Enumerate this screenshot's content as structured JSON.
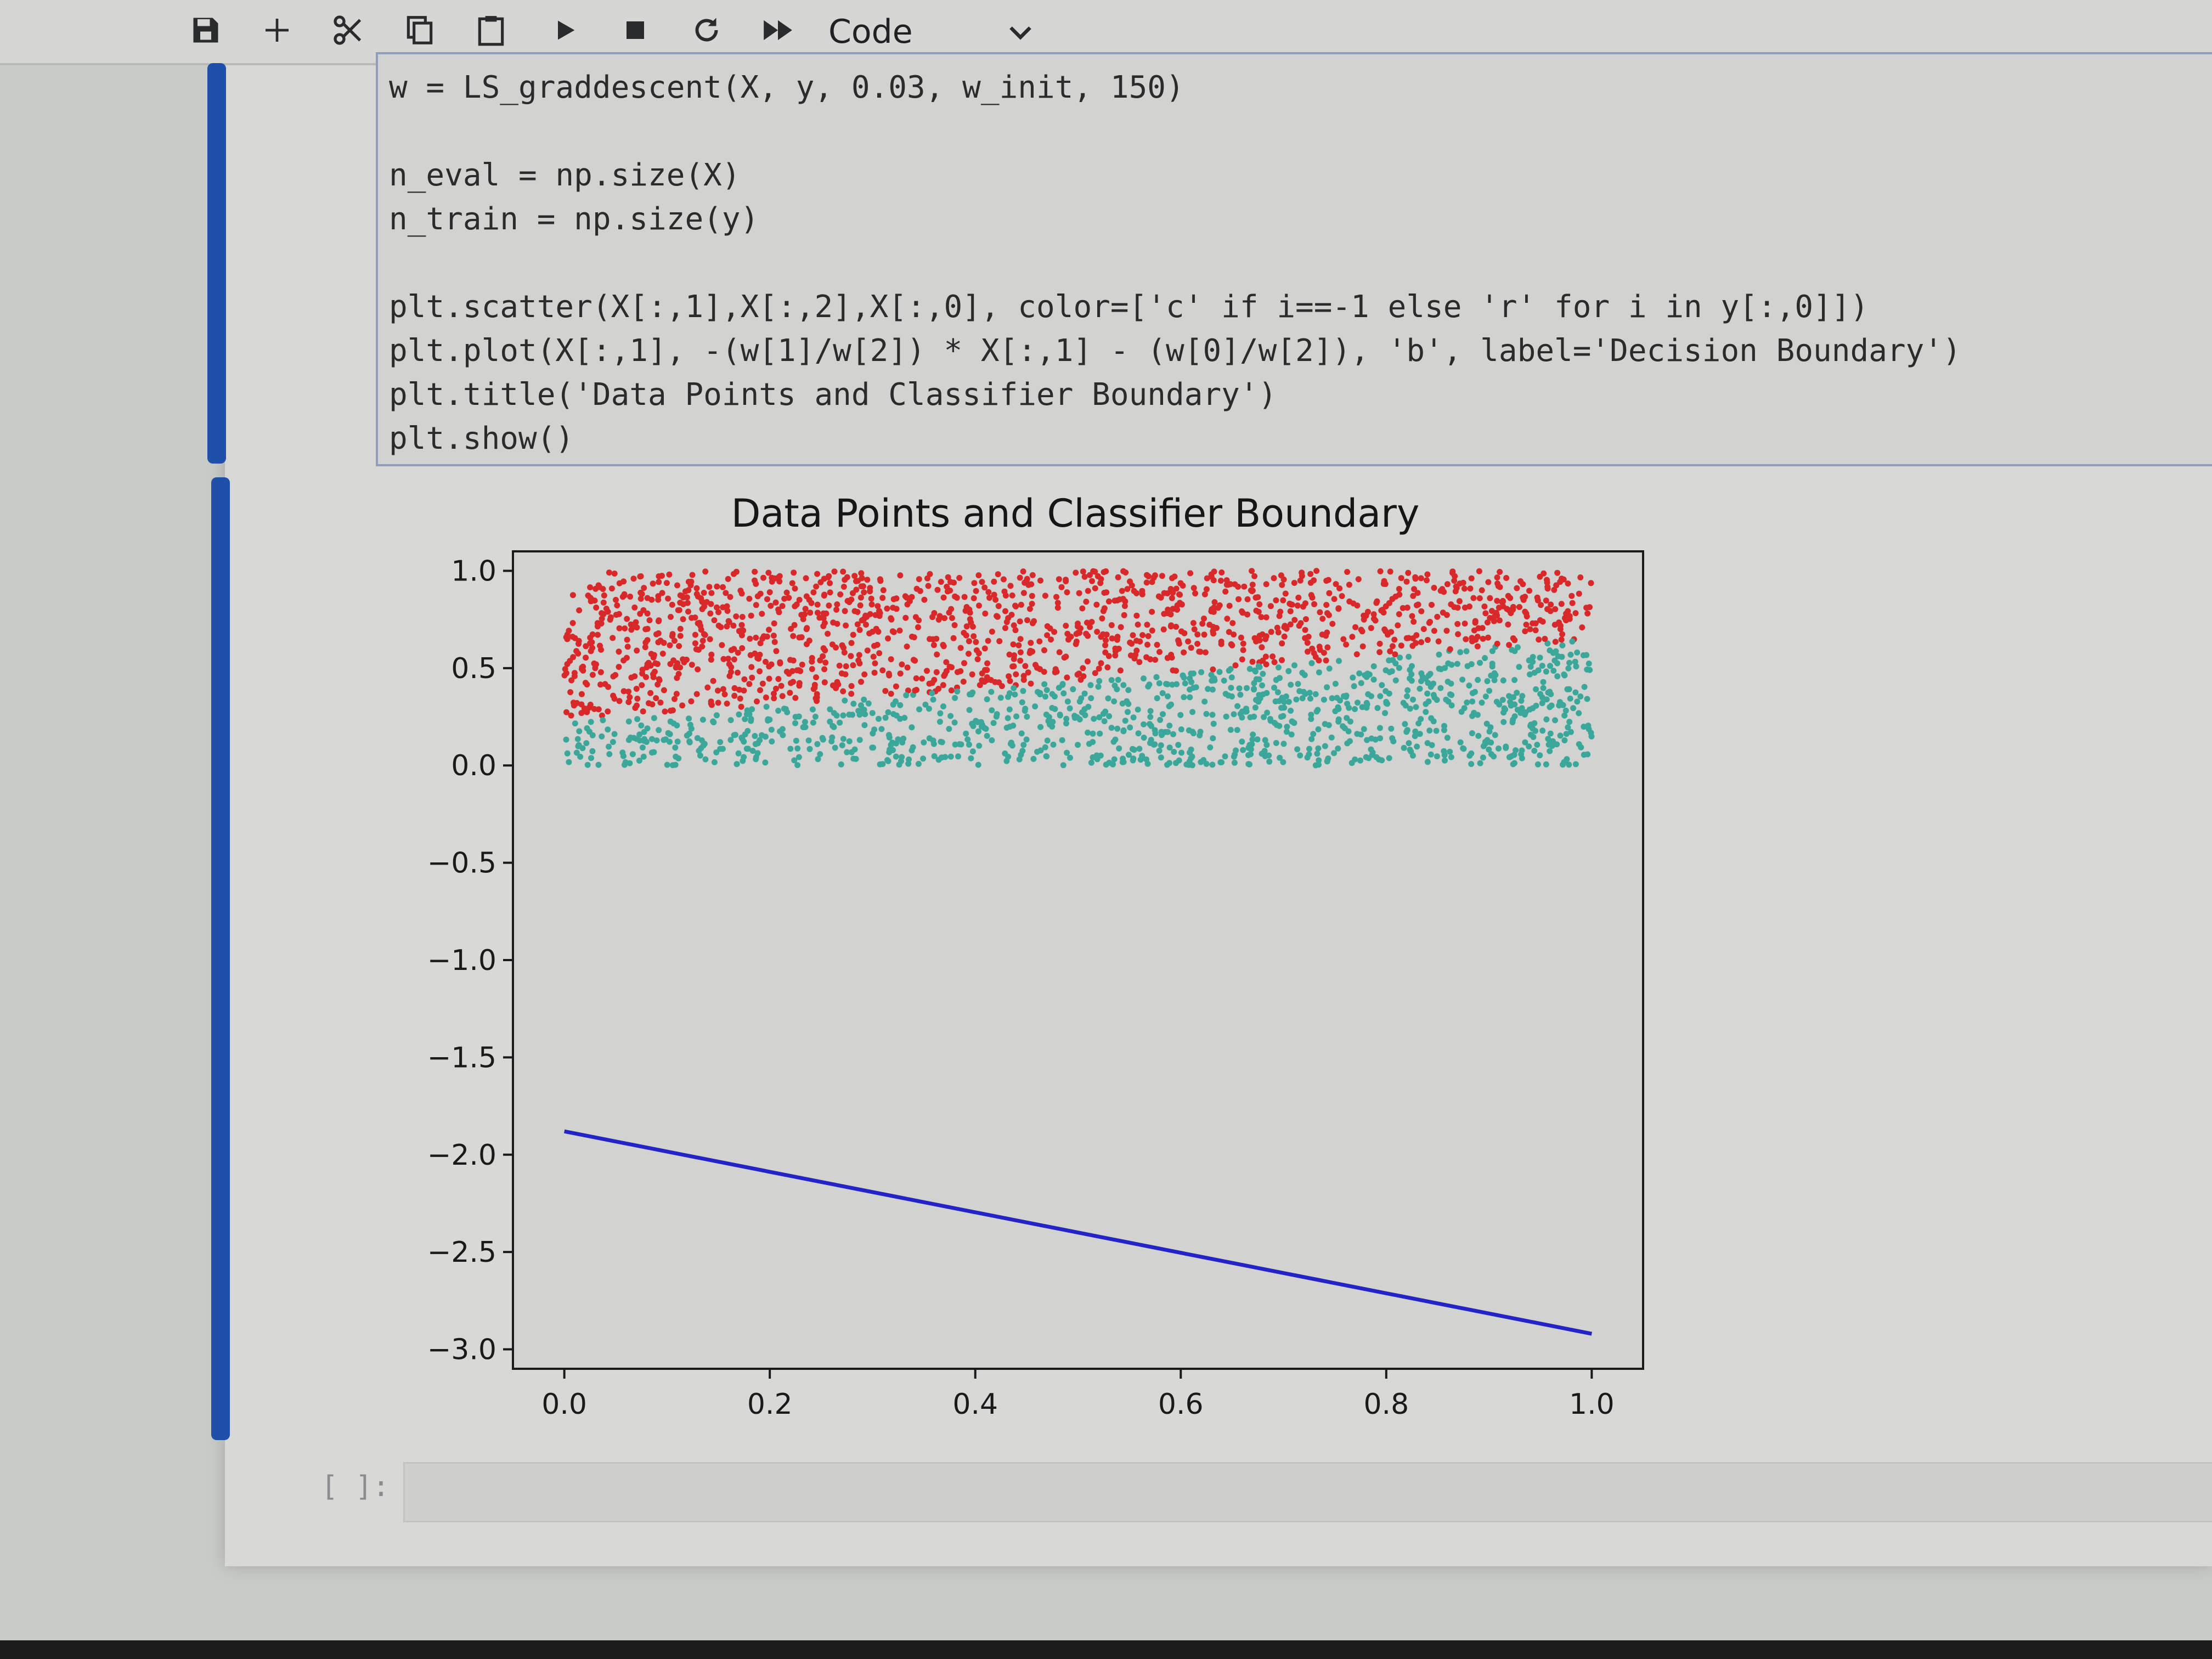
{
  "toolbar": {
    "buttons": [
      {
        "name": "save-button",
        "icon": "save-icon"
      },
      {
        "name": "insert-cell-button",
        "icon": "plus-icon"
      },
      {
        "name": "cut-button",
        "icon": "scissors-icon"
      },
      {
        "name": "copy-button",
        "icon": "copy-icon"
      },
      {
        "name": "paste-button",
        "icon": "clipboard-icon"
      },
      {
        "name": "run-button",
        "icon": "play-icon"
      },
      {
        "name": "stop-button",
        "icon": "stop-icon"
      },
      {
        "name": "restart-button",
        "icon": "restart-icon"
      },
      {
        "name": "run-all-button",
        "icon": "fast-forward-icon"
      }
    ],
    "cell_type": "Code"
  },
  "code_cell": {
    "lines": [
      "w = LS_graddescent(X, y, 0.03, w_init, 150)",
      "",
      "n_eval = np.size(X)",
      "n_train = np.size(y)",
      "",
      "plt.scatter(X[:,1],X[:,2],X[:,0], color=['c' if i==-1 else 'r' for i in y[:,0]])",
      "plt.plot(X[:,1], -(w[1]/w[2]) * X[:,1] - (w[0]/w[2]), 'b', label='Decision Boundary')",
      "plt.title('Data Points and Classifier Boundary')",
      "plt.show()"
    ]
  },
  "chart_data": {
    "type": "scatter",
    "title": "Data Points and Classifier Boundary",
    "xlabel": "",
    "ylabel": "",
    "xlim": [
      -0.05,
      1.05
    ],
    "ylim": [
      -3.1,
      1.1
    ],
    "xticks": [
      "0.0",
      "0.2",
      "0.4",
      "0.6",
      "0.8",
      "1.0"
    ],
    "xtick_values": [
      0.0,
      0.2,
      0.4,
      0.6,
      0.8,
      1.0
    ],
    "yticks": [
      "1.0",
      "0.5",
      "0.0",
      "−0.5",
      "−1.0",
      "−1.5",
      "−2.0",
      "−2.5",
      "−3.0"
    ],
    "ytick_values": [
      1.0,
      0.5,
      0.0,
      -0.5,
      -1.0,
      -1.5,
      -2.0,
      -2.5,
      -3.0
    ],
    "grid": false,
    "series": [
      {
        "color": "#d8282a",
        "kind": "points",
        "x_range": [
          0,
          1
        ],
        "y_range": [
          0,
          1
        ],
        "region": "above boundary",
        "approx_count": 1100
      },
      {
        "color": "#3aa79a",
        "kind": "points",
        "x_range": [
          0,
          1
        ],
        "y_range": [
          0,
          1
        ],
        "region": "below boundary",
        "approx_count": 1300
      },
      {
        "color": "#2323c8",
        "kind": "line",
        "x": [
          0.0,
          1.0
        ],
        "y": [
          -1.88,
          -2.92
        ]
      }
    ],
    "separation_line": {
      "x": [
        0.0,
        1.0
      ],
      "y": [
        0.22,
        0.65
      ]
    }
  },
  "next_cell": {
    "prompt": "[ ]:"
  }
}
